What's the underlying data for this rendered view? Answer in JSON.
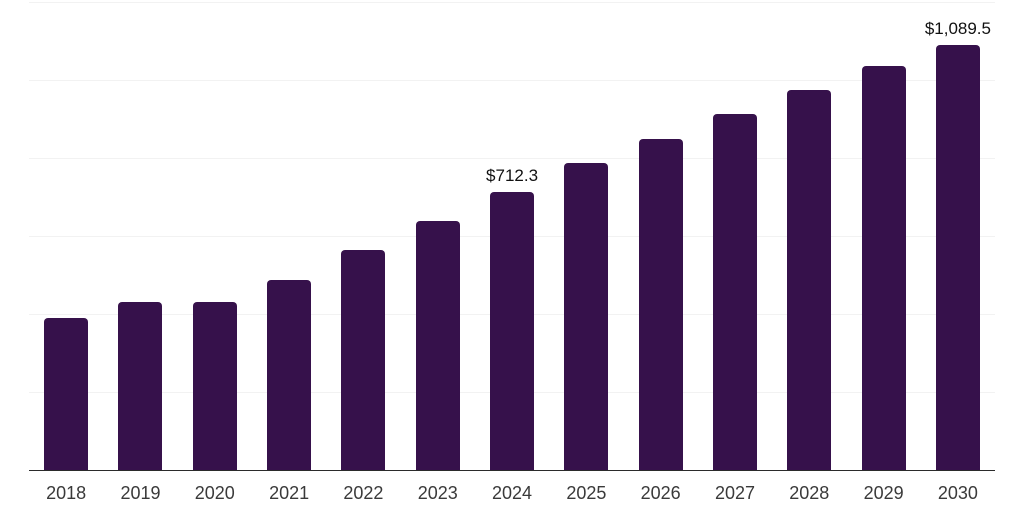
{
  "chart_data": {
    "type": "bar",
    "title": "",
    "xlabel": "",
    "ylabel": "",
    "categories": [
      "2018",
      "2019",
      "2020",
      "2021",
      "2022",
      "2023",
      "2024",
      "2025",
      "2026",
      "2027",
      "2028",
      "2029",
      "2030"
    ],
    "values": [
      389,
      430,
      432,
      488,
      564,
      639,
      712.3,
      786,
      849,
      914,
      975,
      1035,
      1089.5
    ],
    "data_labels": {
      "2024": "$712.3",
      "2030": "$1,089.5"
    },
    "ylim": [
      0,
      1200
    ],
    "gridline_values": [
      200,
      400,
      600,
      800,
      1000,
      1200
    ],
    "grid": true,
    "legend": false,
    "colors": {
      "bar": "#36114B",
      "gridline": "#f2f2f2",
      "axis_line": "#2b2b2b",
      "tick_label": "#3a3a3a",
      "data_label": "#111111",
      "background": "#ffffff"
    }
  }
}
